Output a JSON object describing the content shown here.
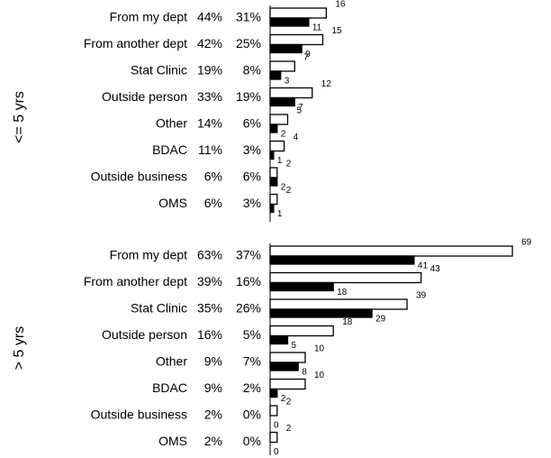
{
  "chart_data": [
    {
      "type": "bar",
      "ylabel": "<= 5 yrs",
      "xlim": [
        0,
        70
      ],
      "categories": [
        "From my dept",
        "From another dept",
        "Stat Clinic",
        "Outside person",
        "Other",
        "BDAC",
        "Outside business",
        "OMS"
      ],
      "percent_labels": [
        [
          "44%",
          "31%"
        ],
        [
          "42%",
          "25%"
        ],
        [
          "19%",
          "8%"
        ],
        [
          "33%",
          "19%"
        ],
        [
          "14%",
          "6%"
        ],
        [
          "11%",
          "3%"
        ],
        [
          "6%",
          "6%"
        ],
        [
          "6%",
          "3%"
        ]
      ],
      "series": [
        {
          "color": "#ffffff",
          "values": [
            16,
            15,
            7,
            12,
            5,
            4,
            2,
            2
          ]
        },
        {
          "color": "#000000",
          "values": [
            11,
            9,
            3,
            7,
            2,
            1,
            2,
            1
          ]
        }
      ]
    },
    {
      "type": "bar",
      "ylabel": "> 5 yrs",
      "xlim": [
        0,
        70
      ],
      "categories": [
        "From my dept",
        "From another dept",
        "Stat Clinic",
        "Outside person",
        "Other",
        "BDAC",
        "Outside business",
        "OMS"
      ],
      "percent_labels": [
        [
          "63%",
          "37%"
        ],
        [
          "39%",
          "16%"
        ],
        [
          "35%",
          "26%"
        ],
        [
          "16%",
          "5%"
        ],
        [
          "9%",
          "7%"
        ],
        [
          "9%",
          "2%"
        ],
        [
          "2%",
          "0%"
        ],
        [
          "2%",
          "0%"
        ]
      ],
      "series": [
        {
          "color": "#ffffff",
          "values": [
            69,
            43,
            39,
            18,
            10,
            10,
            2,
            2
          ]
        },
        {
          "color": "#000000",
          "values": [
            41,
            18,
            29,
            5,
            8,
            2,
            0,
            0
          ]
        }
      ]
    }
  ]
}
